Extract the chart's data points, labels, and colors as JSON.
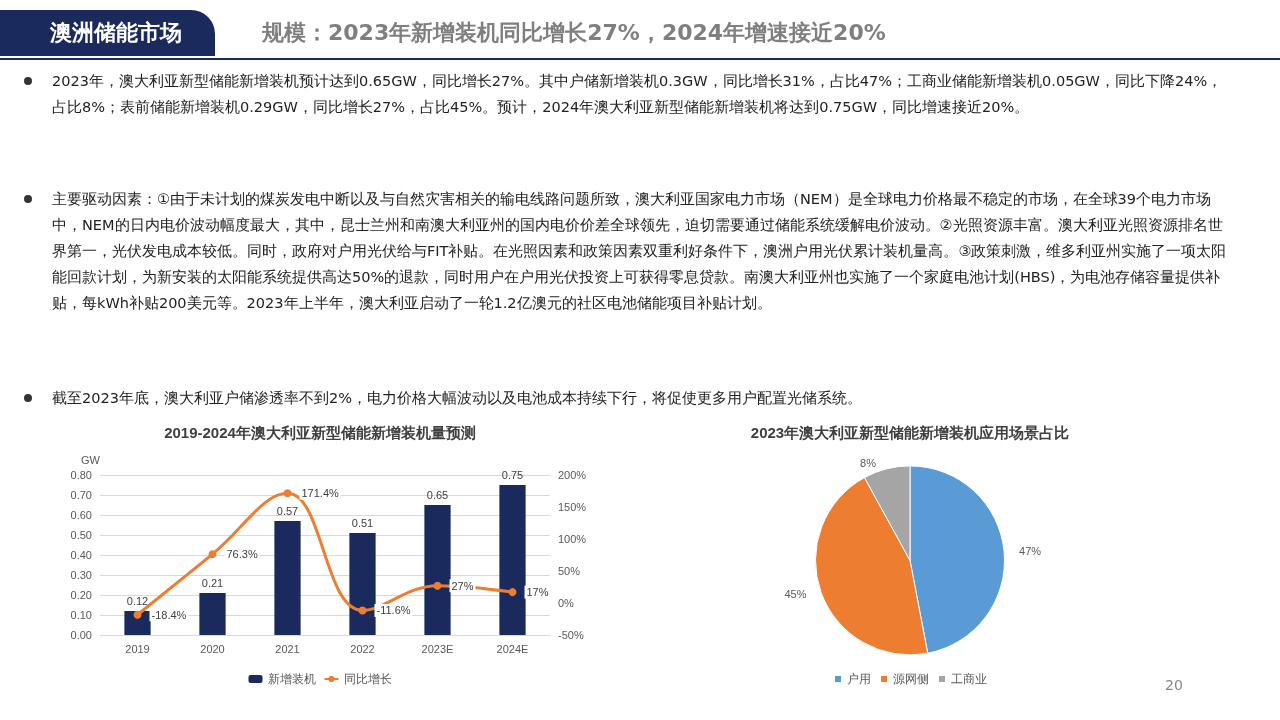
{
  "chart_data": [
    {
      "type": "other",
      "title": "澳洲储能市场",
      "subtitle": "规模：2023年新增装机同比增长27%，2024年增速接近20%",
      "annotations": [
        "2023年，澳大利亚新型储能新增装机预计达到0.65GW，同比增长27%。其中户储新增装机0.3GW，同比增长31%，占比47%；工商业储能新增装机0.05GW，同比下降24%，占比8%；表前储能新增装机0.29GW，同比增长27%，占比45%。预计，2024年澳大利亚新型储能新增装机将达到0.75GW，同比增速接近20%。",
        "主要驱动因素：①由于未计划的煤炭发电中断以及与自然灾害相关的输电线路问题所致，澳大利亚国家电力市场（NEM）是全球电力价格最不稳定的市场，在全球39个电力市场中，NEM的日内电价波动幅度最大，其中，昆士兰州和南澳大利亚州的国内电价价差全球领先，迫切需要通过储能系统缓解电价波动。②光照资源丰富。澳大利亚光照资源排名世界第一，光伏发电成本较低。同时，政府对户用光伏给与FIT补贴。在光照因素和政策因素双重利好条件下，澳洲户用光伏累计装机量高。③政策刺激，维多利亚州实施了一项太阳能回款计划，为新安装的太阳能系统提供高达50%的退款，同时用户在户用光伏投资上可获得零息贷款。南澳大利亚州也实施了一个家庭电池计划(HBS)，为电池存储容量提供补贴，每kWh补贴200美元等。2023年上半年，澳大利亚启动了一轮1.2亿澳元的社区电池储能项目补贴计划。",
        "截至2023年底，澳大利亚户储渗透率不到2%，电力价格大幅波动以及电池成本持续下行，将促使更多用户配置光储系统。",
        "20"
      ]
    },
    {
      "type": "bar",
      "title": "2019-2024年澳大利亚新型储能新增装机量预测",
      "ylabel": "GW",
      "categories": [
        "2019",
        "2020",
        "2021",
        "2022",
        "2023E",
        "2024E"
      ],
      "series": [
        {
          "name": "新增装机",
          "type": "bar",
          "color": "#1b2a5c",
          "values": [
            0.12,
            0.21,
            0.57,
            0.51,
            0.65,
            0.75
          ],
          "data_labels": true
        },
        {
          "name": "同比增长",
          "type": "line",
          "axis": "y2",
          "color": "#ed7d31",
          "values": [
            -18.4,
            76.3,
            171.4,
            -11.6,
            27,
            17
          ],
          "value_labels": [
            "-18.4%",
            "76.3%",
            "171.4%",
            "-11.6%",
            "27%",
            "17%"
          ]
        }
      ],
      "ylim": [
        0,
        0.8
      ],
      "yticks": [
        {
          "value": 0,
          "label": "0.00"
        },
        {
          "value": 0.1,
          "label": "0.10"
        },
        {
          "value": 0.2,
          "label": "0.20"
        },
        {
          "value": 0.3,
          "label": "0.30"
        },
        {
          "value": 0.4,
          "label": "0.40"
        },
        {
          "value": 0.5,
          "label": "0.50"
        },
        {
          "value": 0.6,
          "label": "0.60"
        },
        {
          "value": 0.7,
          "label": "0.70"
        },
        {
          "value": 0.8,
          "label": "0.80"
        }
      ],
      "y2lim": [
        -50,
        200
      ],
      "y2ticks": [
        {
          "value": -50,
          "label": "-50%"
        },
        {
          "value": 0,
          "label": "0%"
        },
        {
          "value": 50,
          "label": "50%"
        },
        {
          "value": 100,
          "label": "100%"
        },
        {
          "value": 150,
          "label": "150%"
        },
        {
          "value": 200,
          "label": "200%"
        }
      ],
      "grid": "y",
      "legend": "bottom",
      "marker": "circle"
    },
    {
      "type": "pie",
      "title": "2023年澳大利亚新型储能新增装机应用场景占比",
      "categories": [
        "户用",
        "源网侧",
        "工商业"
      ],
      "values": [
        47,
        45,
        8
      ],
      "colors": [
        "#5b9bd5",
        "#ed7d31",
        "#a5a5a5"
      ],
      "value_labels": [
        "47%",
        "45%",
        "8%"
      ],
      "legend": "bottom"
    }
  ]
}
